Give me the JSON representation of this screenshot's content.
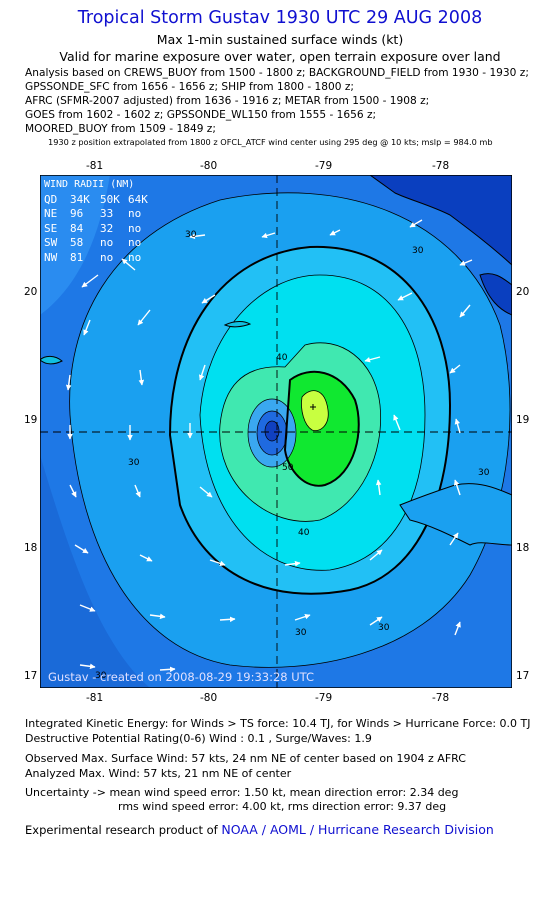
{
  "title": "Tropical Storm Gustav 1930 UTC 29 AUG 2008",
  "subtitle1": "Max 1-min sustained surface winds (kt)",
  "subtitle2": "Valid for marine exposure over water, open terrain exposure over land",
  "analysis_lines": [
    "Analysis based on  CREWS_BUOY from 1500 - 1800 z;  BACKGROUND_FIELD from 1930 - 1930 z;",
    "GPSSONDE_SFC from 1656 - 1656 z;  SHIP from 1800 - 1800 z;",
    "AFRC (SFMR-2007 adjusted) from 1636 - 1916 z;  METAR from 1500 - 1908 z;",
    "GOES from 1602 - 1602 z;  GPSSONDE_WL150 from 1555 - 1656 z;",
    "MOORED_BUOY from 1509 - 1849 z;"
  ],
  "position_note": "1930 z position extrapolated from 1800 z OFCL_ATCF wind center using 295 deg @ 10 kts; mslp = 984.0 mb",
  "axes": {
    "lon_ticks": [
      "-81",
      "-80",
      "-79",
      "-78"
    ],
    "lat_ticks": [
      "20",
      "19",
      "18",
      "17"
    ]
  },
  "wind_radii": {
    "title": "WIND RADII (NM)",
    "header": [
      "QD",
      "34K",
      "50K",
      "64K"
    ],
    "rows": [
      [
        "NE",
        "96",
        "33",
        "no"
      ],
      [
        "SE",
        "84",
        "32",
        "no"
      ],
      [
        "SW",
        "58",
        "no",
        "no"
      ],
      [
        "NW",
        "81",
        "no",
        "no"
      ]
    ]
  },
  "contour_labels": [
    "30",
    "30",
    "30",
    "30",
    "30",
    "40",
    "40",
    "50",
    "30",
    "30"
  ],
  "credit": "Gustav - created on 2008-08-29 19:33:28 UTC",
  "footer": {
    "ike": "Integrated Kinetic Energy:  for Winds > TS force: 10.4 TJ,  for Winds > Hurricane Force: 0.0 TJ",
    "dpr": "Destructive Potential Rating(0-6)   Wind : 0.1 , Surge/Waves: 1.9",
    "observed": "Observed Max. Surface Wind: 57 kts, 24 nm NE of center based on 1904 z AFRC",
    "analyzed": "Analyzed Max. Wind: 57 kts, 21 nm NE of center",
    "uncertainty1": "Uncertainty -> mean wind speed error: 1.50 kt,   mean direction error: 2.34 deg",
    "uncertainty2": "rms wind speed error: 4.00 kt,   rms direction error: 9.37 deg",
    "product_prefix": "Experimental research product of ",
    "product_org": "NOAA / AOML / Hurricane Research Division"
  }
}
